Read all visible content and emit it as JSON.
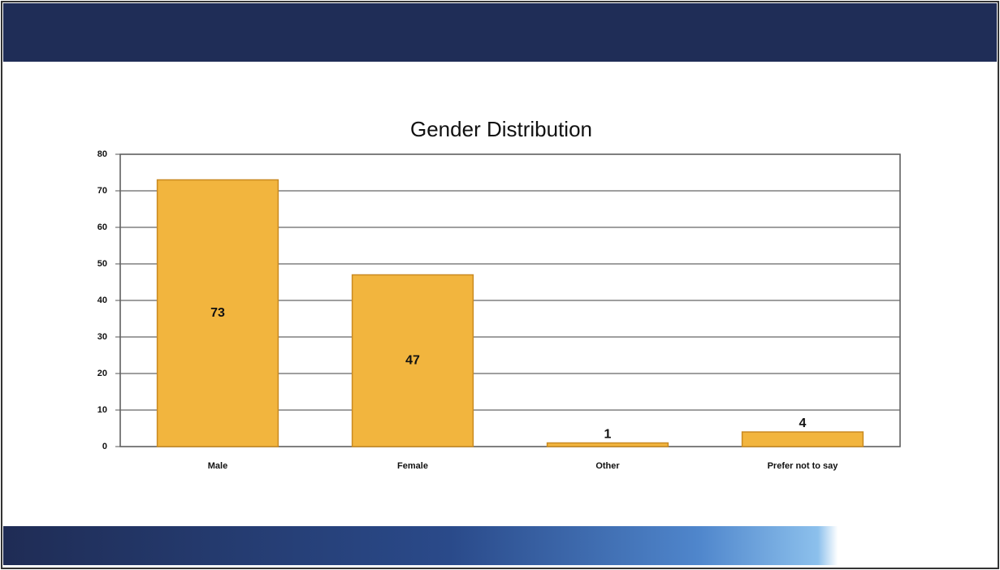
{
  "chart_data": {
    "type": "bar",
    "title": "Gender Distribution",
    "categories": [
      "Male",
      "Female",
      "Other",
      "Prefer not to say"
    ],
    "values": [
      73,
      47,
      1,
      4
    ],
    "color": "#f2b53e",
    "ylim": [
      0,
      80
    ],
    "yticks": [
      0,
      10,
      20,
      30,
      40,
      50,
      60,
      70,
      80
    ],
    "grid": true
  }
}
